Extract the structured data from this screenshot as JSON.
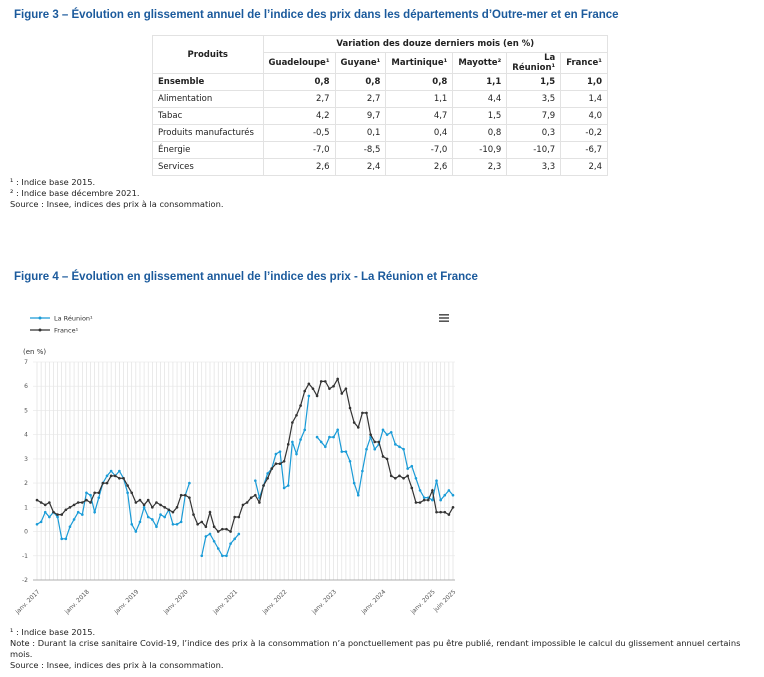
{
  "figure3": {
    "title": "Figure 3 – Évolution en glissement annuel de l’indice des prix dans les départements d’Outre-mer et en France",
    "table": {
      "header_product": "Produits",
      "header_group": "Variation des douze derniers mois (en %)",
      "columns": [
        "Guadeloupe¹",
        "Guyane¹",
        "Martinique¹",
        "Mayotte²",
        "La Réunion¹",
        "France¹"
      ],
      "rows": [
        [
          "Ensemble",
          "0,8",
          "0,8",
          "0,8",
          "1,1",
          "1,5",
          "1,0"
        ],
        [
          "Alimentation",
          "2,7",
          "2,7",
          "1,1",
          "4,4",
          "3,5",
          "1,4"
        ],
        [
          "Tabac",
          "4,2",
          "9,7",
          "4,7",
          "1,5",
          "7,9",
          "4,0"
        ],
        [
          "Produits manufacturés",
          "-0,5",
          "0,1",
          "0,4",
          "0,8",
          "0,3",
          "-0,2"
        ],
        [
          "Énergie",
          "-7,0",
          "-8,5",
          "-7,0",
          "-10,9",
          "-10,7",
          "-6,7"
        ],
        [
          "Services",
          "2,6",
          "2,4",
          "2,6",
          "2,3",
          "3,3",
          "2,4"
        ]
      ]
    },
    "notes": [
      "¹ : Indice base 2015.",
      "² : Indice base décembre 2021.",
      "Source : Insee, indices des prix à la consommation."
    ]
  },
  "figure4": {
    "title": "Figure 4 – Évolution en glissement annuel de l’indice des prix - La Réunion et France",
    "notes": [
      "¹ : Indice base 2015.",
      "Note : Durant la crise sanitaire Covid-19, l’indice des prix à la consommation n’a ponctuellement pas pu être publié, rendant impossible le calcul du glissement annuel certains mois.",
      "Source : Insee, indices des prix à la consommation."
    ]
  },
  "chart_data": {
    "type": "line",
    "y_label": "(en %)",
    "categories": [
      "janv. 2017",
      null,
      null,
      null,
      null,
      null,
      null,
      null,
      null,
      null,
      null,
      null,
      "janv. 2018",
      null,
      null,
      null,
      null,
      null,
      null,
      null,
      null,
      null,
      null,
      null,
      "janv. 2019",
      null,
      null,
      null,
      null,
      null,
      null,
      null,
      null,
      null,
      null,
      null,
      "janv. 2020",
      null,
      null,
      null,
      null,
      null,
      null,
      null,
      null,
      null,
      null,
      null,
      "janv. 2021",
      null,
      null,
      null,
      null,
      null,
      null,
      null,
      null,
      null,
      null,
      null,
      "janv. 2022",
      null,
      null,
      null,
      null,
      null,
      null,
      null,
      null,
      null,
      null,
      null,
      "janv. 2023",
      null,
      null,
      null,
      null,
      null,
      null,
      null,
      null,
      null,
      null,
      null,
      "janv. 2024",
      null,
      null,
      null,
      null,
      null,
      null,
      null,
      null,
      null,
      null,
      null,
      "janv. 2025",
      null,
      null,
      null,
      null,
      "juin 2025"
    ],
    "series": [
      {
        "name": "La Réunion¹",
        "color": "#1a9bd7",
        "values": [
          0.3,
          0.4,
          0.8,
          0.6,
          0.8,
          0.6,
          -0.3,
          -0.3,
          0.2,
          0.5,
          0.8,
          0.7,
          1.6,
          1.5,
          0.8,
          1.4,
          2.0,
          2.3,
          2.5,
          2.3,
          2.5,
          2.2,
          1.6,
          0.3,
          0.0,
          0.4,
          1.0,
          0.6,
          0.5,
          0.2,
          0.7,
          0.6,
          0.9,
          0.3,
          0.3,
          0.4,
          1.5,
          2.0,
          null,
          null,
          -1.0,
          -0.2,
          -0.1,
          -0.4,
          -0.7,
          -1.0,
          -1.0,
          -0.5,
          -0.3,
          -0.1,
          null,
          null,
          null,
          2.1,
          1.4,
          1.9,
          2.4,
          2.6,
          3.2,
          3.3,
          1.8,
          1.9,
          3.7,
          3.2,
          3.8,
          4.2,
          5.6,
          null,
          3.9,
          3.7,
          3.5,
          3.9,
          3.9,
          4.2,
          3.3,
          3.3,
          2.9,
          2.0,
          1.5,
          2.5,
          3.4,
          3.9,
          3.4,
          3.6,
          4.2,
          4.0,
          4.1,
          3.6,
          3.5,
          3.4,
          2.6,
          2.7,
          2.2,
          1.7,
          1.4,
          1.4,
          1.3,
          2.1,
          1.3,
          1.5,
          1.7,
          1.5
        ]
      },
      {
        "name": "France¹",
        "color": "#333333",
        "values": [
          1.3,
          1.2,
          1.1,
          1.2,
          0.8,
          0.7,
          0.7,
          0.9,
          1.0,
          1.1,
          1.2,
          1.2,
          1.3,
          1.2,
          1.6,
          1.6,
          2.0,
          2.0,
          2.3,
          2.3,
          2.2,
          2.2,
          1.9,
          1.6,
          1.2,
          1.3,
          1.1,
          1.3,
          1.0,
          1.2,
          1.1,
          1.0,
          0.9,
          0.8,
          1.0,
          1.5,
          1.5,
          1.4,
          0.7,
          0.3,
          0.4,
          0.2,
          0.8,
          0.2,
          0.0,
          0.1,
          0.1,
          0.0,
          0.6,
          0.6,
          1.1,
          1.2,
          1.4,
          1.5,
          1.2,
          1.9,
          2.2,
          2.6,
          2.8,
          2.8,
          2.9,
          3.6,
          4.5,
          4.8,
          5.2,
          5.8,
          6.1,
          5.9,
          5.6,
          6.2,
          6.2,
          5.9,
          6.0,
          6.3,
          5.7,
          5.9,
          5.1,
          4.5,
          4.3,
          4.9,
          4.9,
          4.0,
          3.7,
          3.7,
          3.1,
          3.0,
          2.3,
          2.2,
          2.3,
          2.2,
          2.3,
          1.8,
          1.2,
          1.2,
          1.3,
          1.3,
          1.7,
          0.8,
          0.8,
          0.8,
          0.7,
          1.0
        ]
      }
    ],
    "ylim": [
      -2,
      7
    ],
    "yticks": [
      -2,
      -1,
      0,
      1,
      2,
      3,
      4,
      5,
      6,
      7
    ],
    "grid": true
  }
}
